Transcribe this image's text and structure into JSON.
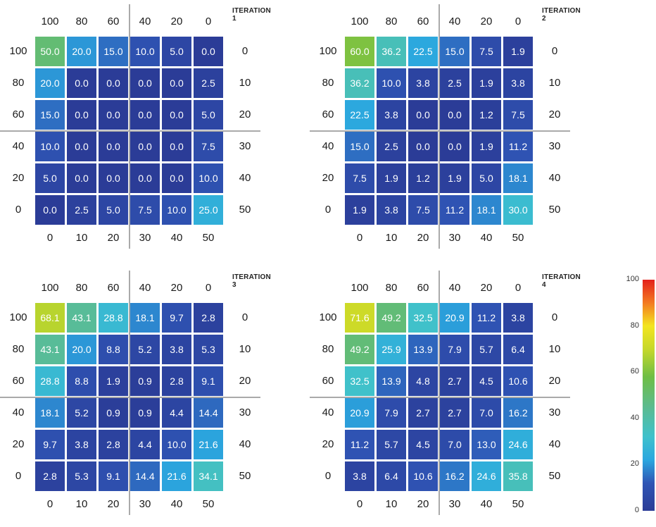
{
  "chart_data": [
    {
      "type": "heatmap",
      "title": "ITERATION 1",
      "top_labels": [
        "100",
        "80",
        "60",
        "40",
        "20",
        "0"
      ],
      "left_labels": [
        "100",
        "80",
        "60",
        "40",
        "20",
        "0"
      ],
      "right_labels": [
        "0",
        "10",
        "20",
        "30",
        "40",
        "50"
      ],
      "bottom_labels": [
        "0",
        "10",
        "20",
        "30",
        "40",
        "50"
      ],
      "values": [
        [
          "50.0",
          "20.0",
          "15.0",
          "10.0",
          "5.0",
          "0.0"
        ],
        [
          "20.0",
          "0.0",
          "0.0",
          "0.0",
          "0.0",
          "2.5"
        ],
        [
          "15.0",
          "0.0",
          "0.0",
          "0.0",
          "0.0",
          "5.0"
        ],
        [
          "10.0",
          "0.0",
          "0.0",
          "0.0",
          "0.0",
          "7.5"
        ],
        [
          "5.0",
          "0.0",
          "0.0",
          "0.0",
          "0.0",
          "10.0"
        ],
        [
          "0.0",
          "2.5",
          "5.0",
          "7.5",
          "10.0",
          "25.0"
        ]
      ]
    },
    {
      "type": "heatmap",
      "title": "ITERATION 2",
      "top_labels": [
        "100",
        "80",
        "60",
        "40",
        "20",
        "0"
      ],
      "left_labels": [
        "100",
        "80",
        "60",
        "40",
        "20",
        "0"
      ],
      "right_labels": [
        "0",
        "10",
        "20",
        "30",
        "40",
        "50"
      ],
      "bottom_labels": [
        "0",
        "10",
        "20",
        "30",
        "40",
        "50"
      ],
      "values": [
        [
          "60.0",
          "36.2",
          "22.5",
          "15.0",
          "7.5",
          "1.9"
        ],
        [
          "36.2",
          "10.0",
          "3.8",
          "2.5",
          "1.9",
          "3.8"
        ],
        [
          "22.5",
          "3.8",
          "0.0",
          "0.0",
          "1.2",
          "7.5"
        ],
        [
          "15.0",
          "2.5",
          "0.0",
          "0.0",
          "1.9",
          "11.2"
        ],
        [
          "7.5",
          "1.9",
          "1.2",
          "1.9",
          "5.0",
          "18.1"
        ],
        [
          "1.9",
          "3.8",
          "7.5",
          "11.2",
          "18.1",
          "30.0"
        ]
      ]
    },
    {
      "type": "heatmap",
      "title": "ITERATION 3",
      "top_labels": [
        "100",
        "80",
        "60",
        "40",
        "20",
        "0"
      ],
      "left_labels": [
        "100",
        "80",
        "60",
        "40",
        "20",
        "0"
      ],
      "right_labels": [
        "0",
        "10",
        "20",
        "30",
        "40",
        "50"
      ],
      "bottom_labels": [
        "0",
        "10",
        "20",
        "30",
        "40",
        "50"
      ],
      "values": [
        [
          "68.1",
          "43.1",
          "28.8",
          "18.1",
          "9.7",
          "2.8"
        ],
        [
          "43.1",
          "20.0",
          "8.8",
          "5.2",
          "3.8",
          "5.3"
        ],
        [
          "28.8",
          "8.8",
          "1.9",
          "0.9",
          "2.8",
          "9.1"
        ],
        [
          "18.1",
          "5.2",
          "0.9",
          "0.9",
          "4.4",
          "14.4"
        ],
        [
          "9.7",
          "3.8",
          "2.8",
          "4.4",
          "10.0",
          "21.6"
        ],
        [
          "2.8",
          "5.3",
          "9.1",
          "14.4",
          "21.6",
          "34.1"
        ]
      ]
    },
    {
      "type": "heatmap",
      "title": "ITERATION 4",
      "top_labels": [
        "100",
        "80",
        "60",
        "40",
        "20",
        "0"
      ],
      "left_labels": [
        "100",
        "80",
        "60",
        "40",
        "20",
        "0"
      ],
      "right_labels": [
        "0",
        "10",
        "20",
        "30",
        "40",
        "50"
      ],
      "bottom_labels": [
        "0",
        "10",
        "20",
        "30",
        "40",
        "50"
      ],
      "values": [
        [
          "71.6",
          "49.2",
          "32.5",
          "20.9",
          "11.2",
          "3.8"
        ],
        [
          "49.2",
          "25.9",
          "13.9",
          "7.9",
          "5.7",
          "6.4"
        ],
        [
          "32.5",
          "13.9",
          "4.8",
          "2.7",
          "4.5",
          "10.6"
        ],
        [
          "20.9",
          "7.9",
          "2.7",
          "2.7",
          "7.0",
          "16.2"
        ],
        [
          "11.2",
          "5.7",
          "4.5",
          "7.0",
          "13.0",
          "24.6"
        ],
        [
          "3.8",
          "6.4",
          "10.6",
          "16.2",
          "24.6",
          "35.8"
        ]
      ]
    }
  ],
  "colorbar": {
    "min": 0,
    "max": 100,
    "ticks": [
      "100",
      "80",
      "60",
      "40",
      "20",
      "0"
    ],
    "colormap": "jet"
  }
}
